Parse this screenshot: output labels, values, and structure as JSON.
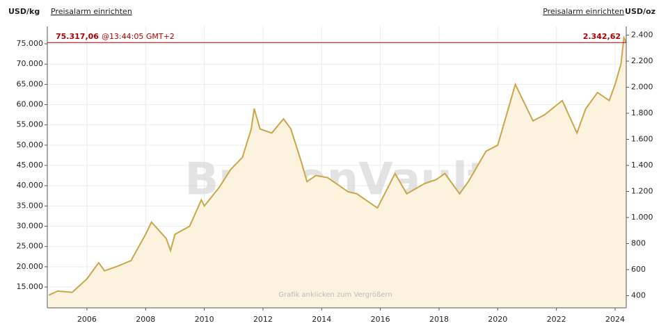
{
  "chart_data": {
    "type": "line",
    "ylabel": "USD/kg",
    "y2label": "USD/oz",
    "alarm_left": "Preisalarm einrichten",
    "alarm_right": "Preisalarm einrichten",
    "watermark": "BullionVault",
    "footer": "Grafik anklicken zum Vergrößern",
    "color": "#c9a64a",
    "fill": "#fbf3dd",
    "grid": true,
    "x": [
      2004.7,
      2005.0,
      2005.5,
      2006.0,
      2006.4,
      2006.6,
      2007.0,
      2007.5,
      2008.0,
      2008.2,
      2008.7,
      2008.85,
      2009.0,
      2009.5,
      2009.9,
      2010.0,
      2010.5,
      2010.9,
      2011.3,
      2011.6,
      2011.7,
      2011.9,
      2012.3,
      2012.7,
      2012.95,
      2013.3,
      2013.5,
      2013.8,
      2014.2,
      2014.9,
      2015.2,
      2015.6,
      2015.9,
      2016.5,
      2016.9,
      2017.5,
      2017.9,
      2018.2,
      2018.7,
      2019.0,
      2019.6,
      2020.0,
      2020.6,
      2020.9,
      2021.2,
      2021.6,
      2022.2,
      2022.7,
      2023.0,
      2023.4,
      2023.8,
      2024.0,
      2024.2,
      2024.3,
      2024.38
    ],
    "values": [
      13000,
      14000,
      13700,
      17000,
      21000,
      19000,
      20000,
      21500,
      28000,
      31000,
      27000,
      24000,
      28000,
      30000,
      36500,
      35000,
      39500,
      44000,
      47000,
      54000,
      59000,
      54000,
      53000,
      56500,
      54000,
      46000,
      41000,
      42500,
      42000,
      38500,
      38000,
      36000,
      34500,
      43000,
      38000,
      40500,
      41500,
      43000,
      38000,
      41000,
      48500,
      50000,
      65000,
      60500,
      56000,
      57500,
      61000,
      53000,
      59000,
      63000,
      61000,
      65000,
      70000,
      76500,
      75317.06
    ],
    "price_line": {
      "value": 75317.06,
      "label": "75.317,06",
      "time": "@13:44:05 GMT+2",
      "value_y2": 2342.62,
      "label_y2": "2.342,62",
      "color": "#b00000"
    },
    "xlim": [
      2004.65,
      2024.38
    ],
    "xticks": [
      2006,
      2008,
      2010,
      2012,
      2014,
      2016,
      2018,
      2020,
      2022,
      2024
    ],
    "ylim": [
      9860,
      79300
    ],
    "yticks": [
      {
        "value": 15000,
        "label": "15.000"
      },
      {
        "value": 20000,
        "label": "20.000"
      },
      {
        "value": 25000,
        "label": "25.000"
      },
      {
        "value": 30000,
        "label": "30.000"
      },
      {
        "value": 35000,
        "label": "35.000"
      },
      {
        "value": 40000,
        "label": "40.000"
      },
      {
        "value": 45000,
        "label": "45.000"
      },
      {
        "value": 50000,
        "label": "50.000"
      },
      {
        "value": 55000,
        "label": "55.000"
      },
      {
        "value": 60000,
        "label": "60.000"
      },
      {
        "value": 65000,
        "label": "65.000"
      },
      {
        "value": 70000,
        "label": "70.000"
      },
      {
        "value": 75000,
        "label": "75.000"
      }
    ],
    "y2lim": [
      306.7,
      2466.6
    ],
    "y2ticks": [
      400,
      600,
      800,
      {
        "value": 1000,
        "label": "1.000"
      },
      {
        "value": 1200,
        "label": "1.200"
      },
      {
        "value": 1400,
        "label": "1.400"
      },
      {
        "value": 1600,
        "label": "1.600"
      },
      {
        "value": 1800,
        "label": "1.800"
      },
      {
        "value": 2000,
        "label": "2.000"
      },
      {
        "value": 2200,
        "label": "2.200"
      },
      {
        "value": 2400,
        "label": "2.400"
      }
    ]
  }
}
